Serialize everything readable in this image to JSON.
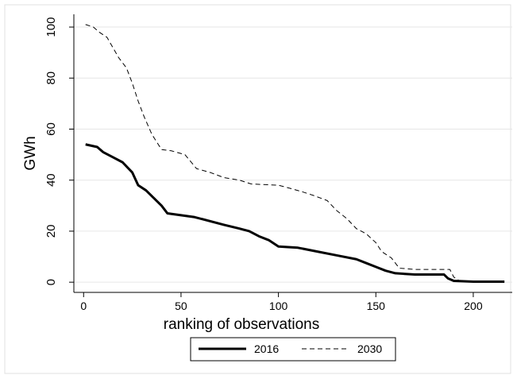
{
  "chart_data": {
    "type": "line",
    "x_label": "ranking of observations",
    "y_label": "GWh",
    "xlim": [
      -5,
      220
    ],
    "ylim": [
      -4,
      105
    ],
    "xticks": [
      0,
      50,
      100,
      150,
      200
    ],
    "yticks": [
      0,
      20,
      40,
      60,
      80,
      100
    ],
    "grid": true,
    "legend": "bottom",
    "series": [
      {
        "name": "2016",
        "color": "#000000",
        "dash": "solid",
        "x": [
          1,
          7,
          10,
          15,
          20,
          25,
          28,
          32,
          36,
          40,
          43,
          57,
          72,
          80,
          85,
          90,
          95,
          100,
          110,
          120,
          130,
          140,
          145,
          150,
          155,
          160,
          170,
          185,
          187,
          190,
          200,
          216
        ],
        "values": [
          54,
          53,
          51,
          49,
          47,
          43,
          38,
          36,
          33,
          30,
          27,
          25.5,
          22.5,
          21,
          20,
          18,
          16.5,
          14,
          13.5,
          12,
          10.5,
          9,
          7.5,
          6,
          4.5,
          3.5,
          3,
          3,
          1.5,
          0.5,
          0.2,
          0.2
        ]
      },
      {
        "name": "2030",
        "color": "#000000",
        "dash": "dashed",
        "x": [
          1,
          5,
          8,
          12,
          15,
          18,
          22,
          25,
          28,
          31,
          35,
          40,
          45,
          52,
          58,
          65,
          72,
          80,
          86,
          100,
          105,
          112,
          118,
          125,
          130,
          135,
          140,
          145,
          150,
          153,
          158,
          162,
          170,
          188,
          190,
          193,
          200,
          216
        ],
        "values": [
          101,
          100,
          98,
          96,
          92,
          88,
          84,
          78,
          71,
          65,
          58,
          52,
          51.5,
          50,
          44.5,
          43,
          41,
          40,
          38.5,
          38,
          37,
          35.5,
          34,
          32,
          28,
          25,
          21,
          19,
          15.5,
          12,
          9.5,
          5.5,
          5,
          5,
          2,
          0.5,
          0.3,
          0.3
        ]
      }
    ]
  }
}
